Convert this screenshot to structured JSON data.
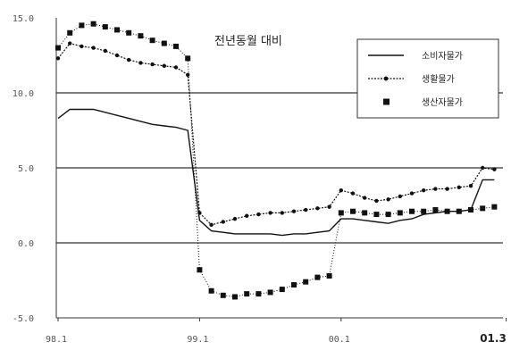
{
  "chart_data": {
    "type": "line",
    "title": "전년동월 대비",
    "xlabel": "",
    "ylabel": "",
    "ylim": [
      -5.0,
      15.0
    ],
    "yticks": [
      -5.0,
      0.0,
      5.0,
      10.0,
      15.0
    ],
    "ytick_labels": [
      "-5.0",
      "0.0",
      "5.0",
      "10.0",
      "15.0"
    ],
    "xticks": [
      {
        "label": "98.1",
        "index": 0
      },
      {
        "label": "99.1",
        "index": 12
      },
      {
        "label": "00.1",
        "index": 24
      },
      {
        "label": "01.3",
        "index": 38
      }
    ],
    "grid": "horizontal",
    "legend_position": "top-right",
    "series": [
      {
        "name": "소비자물가",
        "style": "line",
        "values": [
          8.3,
          8.9,
          8.9,
          8.9,
          8.7,
          8.5,
          8.3,
          8.1,
          7.9,
          7.8,
          7.7,
          7.5,
          1.5,
          0.8,
          0.7,
          0.6,
          0.6,
          0.6,
          0.6,
          0.5,
          0.6,
          0.6,
          0.7,
          0.8,
          1.6,
          1.6,
          1.5,
          1.4,
          1.3,
          1.5,
          1.6,
          1.9,
          2.0,
          2.1,
          2.1,
          2.2,
          4.2,
          4.2
        ]
      },
      {
        "name": "생활물가",
        "style": "line-small-marker",
        "values": [
          12.3,
          13.3,
          13.1,
          13.0,
          12.8,
          12.5,
          12.2,
          12.0,
          11.9,
          11.8,
          11.7,
          11.2,
          2.0,
          1.2,
          1.4,
          1.6,
          1.8,
          1.9,
          2.0,
          2.0,
          2.1,
          2.2,
          2.3,
          2.4,
          3.5,
          3.3,
          3.0,
          2.8,
          2.9,
          3.1,
          3.3,
          3.5,
          3.6,
          3.6,
          3.7,
          3.8,
          5.0,
          4.9
        ]
      },
      {
        "name": "생산자물가",
        "style": "dotted-square-marker",
        "values": [
          13.0,
          14.0,
          14.5,
          14.6,
          14.4,
          14.2,
          14.0,
          13.8,
          13.5,
          13.3,
          13.1,
          12.3,
          -1.8,
          -3.2,
          -3.5,
          -3.6,
          -3.4,
          -3.4,
          -3.3,
          -3.1,
          -2.8,
          -2.6,
          -2.3,
          -2.2,
          2.0,
          2.1,
          2.0,
          1.9,
          1.9,
          2.0,
          2.1,
          2.1,
          2.2,
          2.1,
          2.1,
          2.2,
          2.3,
          2.4
        ]
      }
    ],
    "colors": {
      "line": "#111111",
      "grid": "#333333",
      "tick": "#555555"
    }
  }
}
